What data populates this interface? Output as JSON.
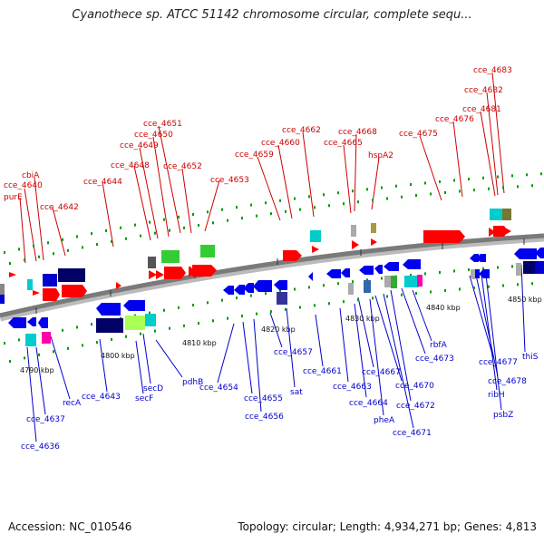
{
  "title": "Cyanothece sp. ATCC 51142 chromosome circular, complete sequ...",
  "footer": {
    "accession": "Accession: NC_010546",
    "summary": "Topology: circular; Length: 4,934,271 bp; Genes: 4,813"
  },
  "colors": {
    "forward_label": "#cc0000",
    "reverse_label": "#0000cc",
    "forward_feature": "#ff0000",
    "reverse_feature": "#0000ee",
    "backbone": "#888888",
    "tick_green": "#009900",
    "tick_label": "#111111"
  },
  "ticks": [
    "4790 kbp",
    "4800 kbp",
    "4810 kbp",
    "4820 kbp",
    "4830 kbp",
    "4840 kbp",
    "4850 kbp"
  ],
  "forward_labels": [
    "purE",
    "cce_4640",
    "cbiA",
    "cce_4642",
    "cce_4644",
    "cce_4648",
    "cce_4649",
    "cce_4650",
    "cce_4651",
    "cce_4652",
    "cce_4653",
    "cce_4659",
    "cce_4660",
    "cce_4662",
    "cce_4665",
    "cce_4668",
    "hspA2",
    "cce_4675",
    "cce_4676",
    "cce_4681",
    "cce_4682",
    "cce_4683"
  ],
  "reverse_labels": [
    "cce_4636",
    "cce_4637",
    "recA",
    "cce_4643",
    "secF",
    "secD",
    "pdhB",
    "cce_4654",
    "cce_4655",
    "cce_4656",
    "cce_4657",
    "sat",
    "cce_4661",
    "cce_4663",
    "cce_4664",
    "pheA",
    "cce_4667",
    "cce_4670",
    "cce_4671",
    "cce_4672",
    "cce_4673",
    "rbfA",
    "cce_4677",
    "cce_4678",
    "ribH",
    "psbZ",
    "thiS"
  ]
}
